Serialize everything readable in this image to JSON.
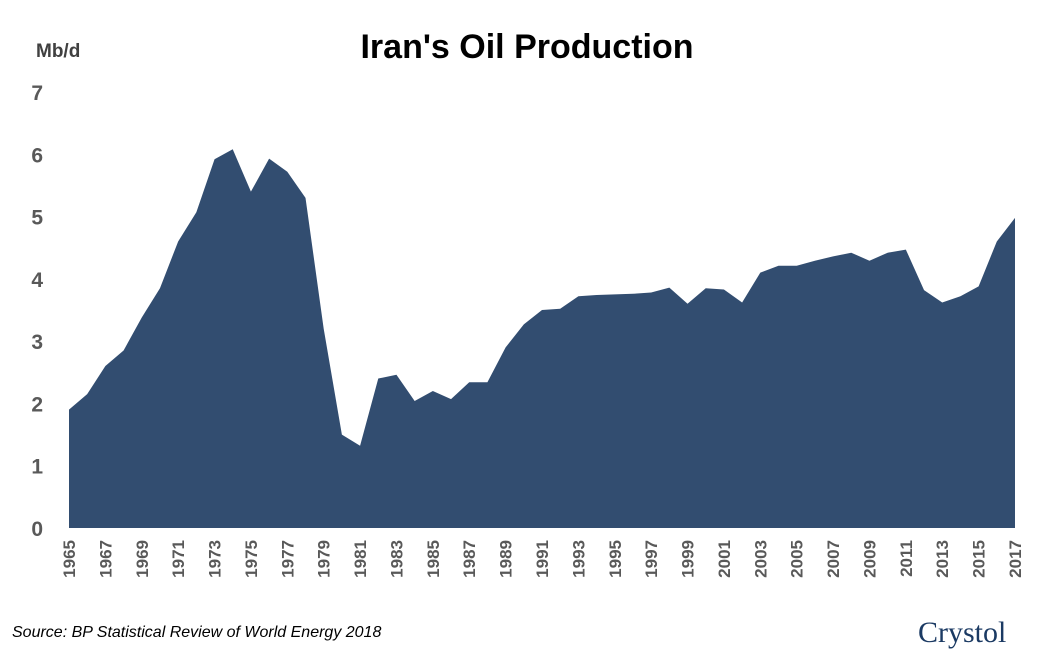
{
  "chart_data": {
    "type": "area",
    "title": "Iran's Oil Production",
    "ylabel": "Mb/d",
    "xlabel": "",
    "ylim": [
      0,
      7
    ],
    "yticks": [
      "0",
      "1",
      "2",
      "3",
      "4",
      "5",
      "6",
      "7"
    ],
    "x": [
      "1965",
      "1966",
      "1967",
      "1968",
      "1969",
      "1970",
      "1971",
      "1972",
      "1973",
      "1974",
      "1975",
      "1976",
      "1977",
      "1978",
      "1979",
      "1980",
      "1981",
      "1982",
      "1983",
      "1984",
      "1985",
      "1986",
      "1987",
      "1988",
      "1989",
      "1990",
      "1991",
      "1992",
      "1993",
      "1994",
      "1995",
      "1996",
      "1997",
      "1998",
      "1999",
      "2000",
      "2001",
      "2002",
      "2003",
      "2004",
      "2005",
      "2006",
      "2007",
      "2008",
      "2009",
      "2010",
      "2011",
      "2012",
      "2013",
      "2014",
      "2015",
      "2016",
      "2017"
    ],
    "xtick_labels": [
      "1965",
      "1967",
      "1969",
      "1971",
      "1973",
      "1975",
      "1977",
      "1979",
      "1981",
      "1983",
      "1985",
      "1987",
      "1989",
      "1991",
      "1993",
      "1995",
      "1997",
      "1999",
      "2001",
      "2003",
      "2005",
      "2007",
      "2009",
      "2011",
      "2013",
      "2015",
      "2017"
    ],
    "series": [
      {
        "values": [
          1.9,
          2.15,
          2.6,
          2.85,
          3.38,
          3.85,
          4.6,
          5.07,
          5.92,
          6.08,
          5.4,
          5.93,
          5.72,
          5.3,
          3.2,
          1.5,
          1.32,
          2.4,
          2.46,
          2.04,
          2.2,
          2.07,
          2.34,
          2.34,
          2.9,
          3.27,
          3.5,
          3.52,
          3.72,
          3.74,
          3.75,
          3.76,
          3.78,
          3.86,
          3.6,
          3.85,
          3.83,
          3.62,
          4.1,
          4.21,
          4.21,
          4.29,
          4.36,
          4.42,
          4.29,
          4.42,
          4.47,
          3.82,
          3.62,
          3.72,
          3.88,
          4.6,
          4.98
        ],
        "color": "#324d70"
      }
    ],
    "grid": false,
    "legend": "none"
  },
  "source": "Source: BP Statistical Review of World Energy 2018",
  "logo_text": "Crystol"
}
